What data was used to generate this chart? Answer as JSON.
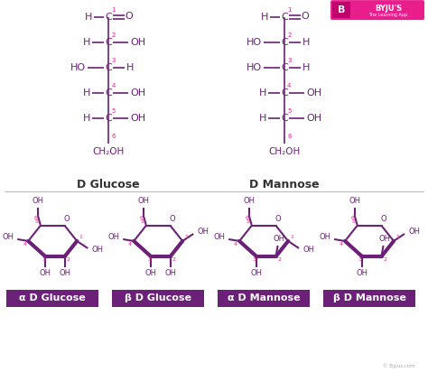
{
  "bg_color": "#ffffff",
  "purple_dark": "#6b2177",
  "pink_num": "#e91e8c",
  "label_bg": "#6b2177",
  "label_text": "#ffffff",
  "line_color": "#6b2177",
  "text_color": "#6b2177",
  "bottom_labels": [
    "α D Glucose",
    "β D Glucose",
    "α D Mannose",
    "β D Mannose"
  ],
  "byju_color": "#e91e8c",
  "separator_color": "#cccccc",
  "footer_color": "#aaaaaa",
  "d_glucose_label": "D Glucose",
  "d_mannose_label": "D Mannose"
}
